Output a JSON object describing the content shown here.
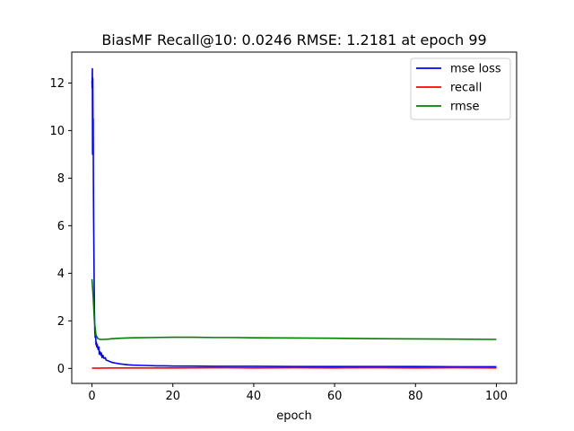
{
  "chart_data": {
    "type": "line",
    "title": "BiasMF Recall@10: 0.0246 RMSE: 1.2181 at epoch 99",
    "xlabel": "epoch",
    "ylabel": "",
    "xlim": [
      -5,
      105
    ],
    "ylim": [
      -0.63,
      13.3
    ],
    "xticks": [
      0,
      20,
      40,
      60,
      80,
      100
    ],
    "yticks": [
      0,
      2,
      4,
      6,
      8,
      10,
      12
    ],
    "grid": false,
    "legend_position": "top-right",
    "series": [
      {
        "name": "mse loss",
        "color": "#0000ff",
        "x": [
          0,
          0.05,
          0.1,
          0.15,
          0.2,
          0.25,
          0.3,
          0.35,
          0.4,
          0.5,
          0.6,
          0.7,
          0.8,
          0.9,
          1.0,
          1.1,
          1.2,
          1.3,
          1.5,
          1.7,
          1.8,
          2.0,
          2.2,
          2.3,
          2.5,
          2.7,
          3.0,
          3.3,
          3.5,
          4.0,
          4.5,
          5,
          6,
          7,
          8,
          9,
          10,
          12,
          14,
          16,
          18,
          20,
          25,
          30,
          40,
          50,
          60,
          70,
          80,
          90,
          100
        ],
        "y": [
          12.1,
          11.8,
          12.6,
          9.0,
          12.2,
          10.3,
          10.5,
          8.0,
          6.5,
          4.5,
          2.5,
          1.6,
          1.3,
          1.5,
          1.0,
          1.1,
          0.9,
          1.0,
          0.8,
          0.9,
          0.6,
          0.7,
          0.55,
          0.65,
          0.45,
          0.55,
          0.42,
          0.45,
          0.35,
          0.32,
          0.28,
          0.25,
          0.22,
          0.19,
          0.17,
          0.15,
          0.14,
          0.13,
          0.12,
          0.11,
          0.11,
          0.1,
          0.1,
          0.09,
          0.09,
          0.08,
          0.08,
          0.08,
          0.08,
          0.07,
          0.07
        ]
      },
      {
        "name": "recall",
        "color": "#ff0000",
        "x": [
          0,
          5,
          10,
          20,
          30,
          40,
          50,
          60,
          70,
          80,
          90,
          100
        ],
        "y": [
          0.01,
          0.02,
          0.02,
          0.02,
          0.03,
          0.02,
          0.03,
          0.02,
          0.03,
          0.02,
          0.03,
          0.02
        ]
      },
      {
        "name": "rmse",
        "color": "#008000",
        "x": [
          0,
          0.3,
          0.6,
          1.0,
          1.5,
          2.0,
          3,
          4,
          5,
          7,
          10,
          15,
          20,
          25,
          30,
          35,
          40,
          50,
          60,
          70,
          80,
          90,
          100
        ],
        "y": [
          3.75,
          3.0,
          2.0,
          1.4,
          1.25,
          1.22,
          1.22,
          1.23,
          1.25,
          1.27,
          1.29,
          1.3,
          1.31,
          1.31,
          1.3,
          1.3,
          1.29,
          1.28,
          1.27,
          1.25,
          1.24,
          1.23,
          1.22
        ]
      }
    ]
  }
}
